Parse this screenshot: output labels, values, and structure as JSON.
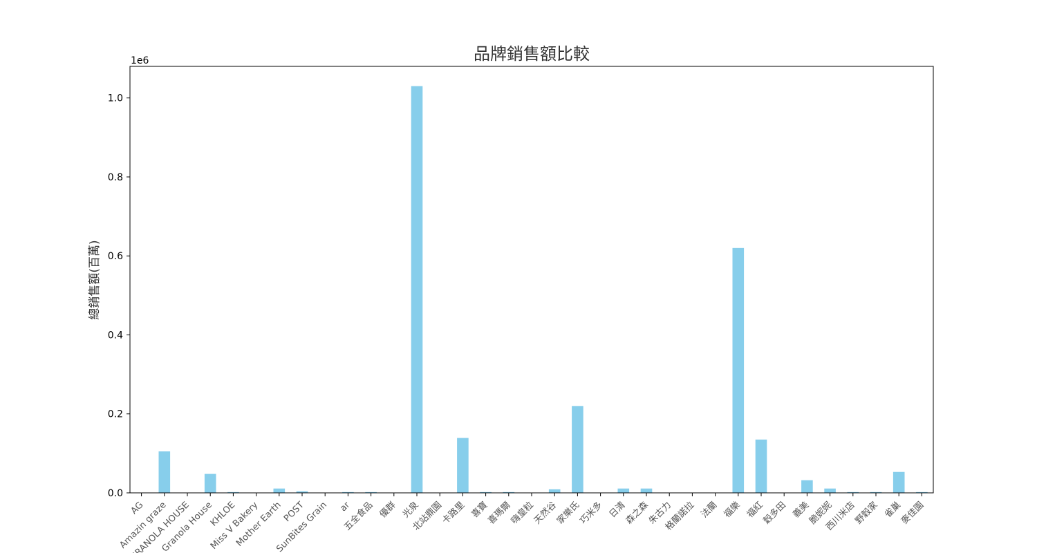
{
  "chart_data": {
    "type": "bar",
    "title": "品牌銷售額比較",
    "xlabel": "",
    "ylabel": "總銷售額(百萬)",
    "y_offset_label": "1e6",
    "ylim": [
      0,
      1.08
    ],
    "y_ticks": [
      0.0,
      0.2,
      0.4,
      0.6,
      0.8,
      1.0
    ],
    "y_tick_labels": [
      "0.0",
      "0.2",
      "0.4",
      "0.6",
      "0.8",
      "1.0"
    ],
    "bar_color": "#87CEEB",
    "grid": false,
    "legend": "none",
    "categories": [
      "AG",
      "Amazin graze",
      "GRANOLA HOUSE",
      "Granola House",
      "KHLOE",
      "Miss V Bakery",
      "Mother Earth",
      "POST",
      "SunBites Grain",
      "ar",
      "五全食品",
      "優群",
      "光泉",
      "北站鼎園",
      "卡路里",
      "喜寶",
      "喜瑪爾",
      "嗨皇粒",
      "天然谷",
      "家樂氏",
      "巧米多",
      "日清",
      "森之森",
      "朱古力",
      "格蘭諾拉",
      "法蘭",
      "福樂",
      "福紅",
      "穀多田",
      "義美",
      "脆妮妮",
      "西川米店",
      "野穀家",
      "雀巢",
      "麥佳園"
    ],
    "values": [
      0.0,
      0.105,
      0.0,
      0.048,
      0.002,
      0.0,
      0.011,
      0.004,
      0.0,
      0.002,
      0.002,
      0.0,
      1.03,
      0.0,
      0.139,
      0.002,
      0.002,
      0.0,
      0.009,
      0.22,
      0.0,
      0.011,
      0.011,
      0.0,
      0.0,
      0.0,
      0.62,
      0.135,
      0.0,
      0.032,
      0.011,
      0.002,
      0.002,
      0.053,
      0.002
    ]
  }
}
